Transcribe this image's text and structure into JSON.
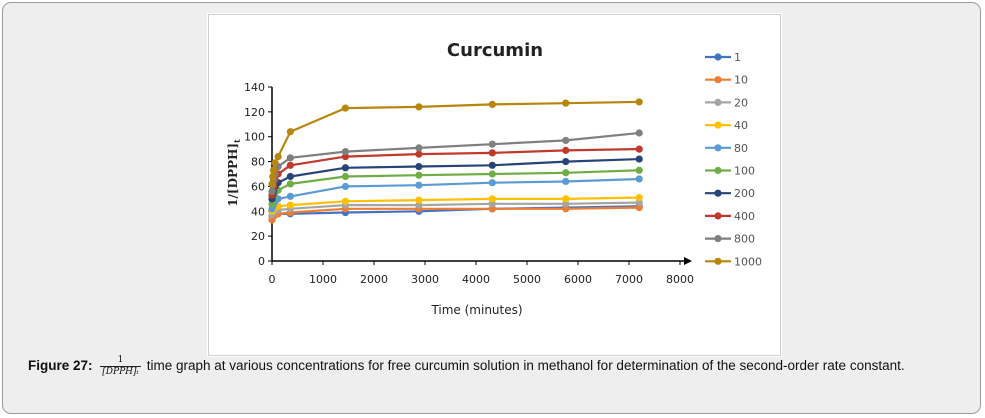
{
  "chart_data": {
    "type": "line",
    "title": "Curcumin",
    "xlabel": "Time (minutes)",
    "ylabel": "1/[DPPH]",
    "ylabel_subscript": "t",
    "xlim": [
      0,
      8000
    ],
    "ylim": [
      0,
      140
    ],
    "xticks": [
      0,
      1000,
      2000,
      3000,
      4000,
      5000,
      6000,
      7000,
      8000
    ],
    "yticks": [
      0,
      20,
      40,
      60,
      80,
      100,
      120,
      140
    ],
    "legend_position": "right",
    "x": [
      0,
      15,
      30,
      60,
      120,
      360,
      1440,
      2880,
      4320,
      5760,
      7200
    ],
    "series": [
      {
        "name": "1",
        "color": "#4472c4",
        "values": [
          36,
          37,
          37,
          38,
          38,
          38,
          39,
          40,
          42,
          43,
          44
        ]
      },
      {
        "name": "10",
        "color": "#ed7d31",
        "values": [
          33,
          35,
          36,
          37,
          38,
          39,
          42,
          42,
          42,
          42,
          43
        ]
      },
      {
        "name": "20",
        "color": "#a5a5a5",
        "values": [
          37,
          38,
          39,
          40,
          41,
          42,
          45,
          45,
          46,
          46,
          47
        ]
      },
      {
        "name": "40",
        "color": "#ffc000",
        "values": [
          40,
          41,
          42,
          43,
          44,
          45,
          48,
          49,
          50,
          50,
          51
        ]
      },
      {
        "name": "80",
        "color": "#5b9bd5",
        "values": [
          42,
          44,
          46,
          48,
          50,
          52,
          60,
          61,
          63,
          64,
          66
        ]
      },
      {
        "name": "100",
        "color": "#70ad47",
        "values": [
          46,
          49,
          52,
          55,
          57,
          62,
          68,
          69,
          70,
          71,
          73
        ]
      },
      {
        "name": "200",
        "color": "#264478",
        "values": [
          50,
          53,
          56,
          60,
          63,
          68,
          75,
          76,
          77,
          80,
          82
        ]
      },
      {
        "name": "400",
        "color": "#c0392b",
        "values": [
          53,
          57,
          60,
          65,
          70,
          77,
          84,
          86,
          87,
          89,
          90
        ]
      },
      {
        "name": "800",
        "color": "#7f7f7f",
        "values": [
          56,
          61,
          65,
          70,
          76,
          83,
          88,
          91,
          94,
          97,
          103
        ]
      },
      {
        "name": "1000",
        "color": "#b8860b",
        "values": [
          62,
          68,
          73,
          79,
          84,
          104,
          123,
          124,
          126,
          127,
          128
        ]
      }
    ]
  },
  "caption": {
    "label": "Figure 27:",
    "fraction_numerator": "1",
    "fraction_denominator": "[DPPH]ₜ",
    "text": "time graph at various concentrations for free curcumin solution in methanol for determination of the second-order rate constant."
  }
}
